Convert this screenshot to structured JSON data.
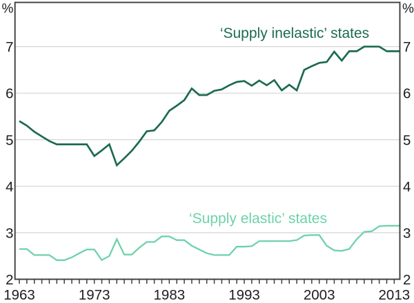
{
  "chart_data": {
    "type": "line",
    "title": "",
    "unit_left": "%",
    "unit_right": "%",
    "grid": "horizontal",
    "legend_position": "inline-annotations",
    "xlim": [
      1962.42,
      2013.75
    ],
    "ylim": [
      2,
      7.95
    ],
    "y_gridlines": [
      3,
      4,
      5,
      6,
      7
    ],
    "y_tick_labels": [
      7,
      6,
      5,
      4,
      3,
      2
    ],
    "x_tick_labels": [
      1963,
      1973,
      1983,
      1993,
      2003,
      2013
    ],
    "x": [
      1963,
      1964,
      1965,
      1966,
      1967,
      1968,
      1969,
      1970,
      1971,
      1972,
      1973,
      1974,
      1975,
      1976,
      1977,
      1978,
      1979,
      1980,
      1981,
      1982,
      1983,
      1984,
      1985,
      1986,
      1987,
      1988,
      1989,
      1990,
      1991,
      1992,
      1993,
      1994,
      1995,
      1996,
      1997,
      1998,
      1999,
      2000,
      2001,
      2002,
      2003,
      2004,
      2005,
      2006,
      2007,
      2008,
      2009,
      2010,
      2011,
      2012,
      2013
    ],
    "series": [
      {
        "name": "‘Supply inelastic’ states",
        "color": "#1b6a52",
        "values": [
          5.4,
          5.3,
          5.17,
          5.07,
          4.97,
          4.9,
          4.9,
          4.9,
          4.9,
          4.9,
          4.65,
          4.77,
          4.9,
          4.45,
          4.6,
          4.76,
          4.96,
          5.18,
          5.2,
          5.38,
          5.62,
          5.73,
          5.85,
          6.1,
          5.96,
          5.96,
          6.05,
          6.08,
          6.17,
          6.24,
          6.26,
          6.16,
          6.27,
          6.17,
          6.28,
          6.06,
          6.18,
          6.06,
          6.5,
          6.58,
          6.65,
          6.67,
          6.89,
          6.7,
          6.9,
          6.9,
          7.0,
          7.0,
          7.0,
          6.9,
          6.9
        ]
      },
      {
        "name": "‘Supply elastic’ states",
        "color": "#6ed2aa",
        "values": [
          2.65,
          2.65,
          2.52,
          2.52,
          2.52,
          2.41,
          2.41,
          2.47,
          2.56,
          2.64,
          2.64,
          2.41,
          2.5,
          2.86,
          2.53,
          2.53,
          2.68,
          2.8,
          2.8,
          2.92,
          2.92,
          2.84,
          2.84,
          2.72,
          2.64,
          2.56,
          2.52,
          2.52,
          2.52,
          2.7,
          2.7,
          2.71,
          2.82,
          2.82,
          2.82,
          2.82,
          2.82,
          2.84,
          2.94,
          2.95,
          2.95,
          2.72,
          2.62,
          2.61,
          2.65,
          2.86,
          3.02,
          3.03,
          3.14,
          3.15,
          3.15
        ]
      }
    ],
    "colors": {
      "axis": "#3c3c3c",
      "grid": "#cfcfcf",
      "tick_text": "#1c1c22"
    }
  }
}
